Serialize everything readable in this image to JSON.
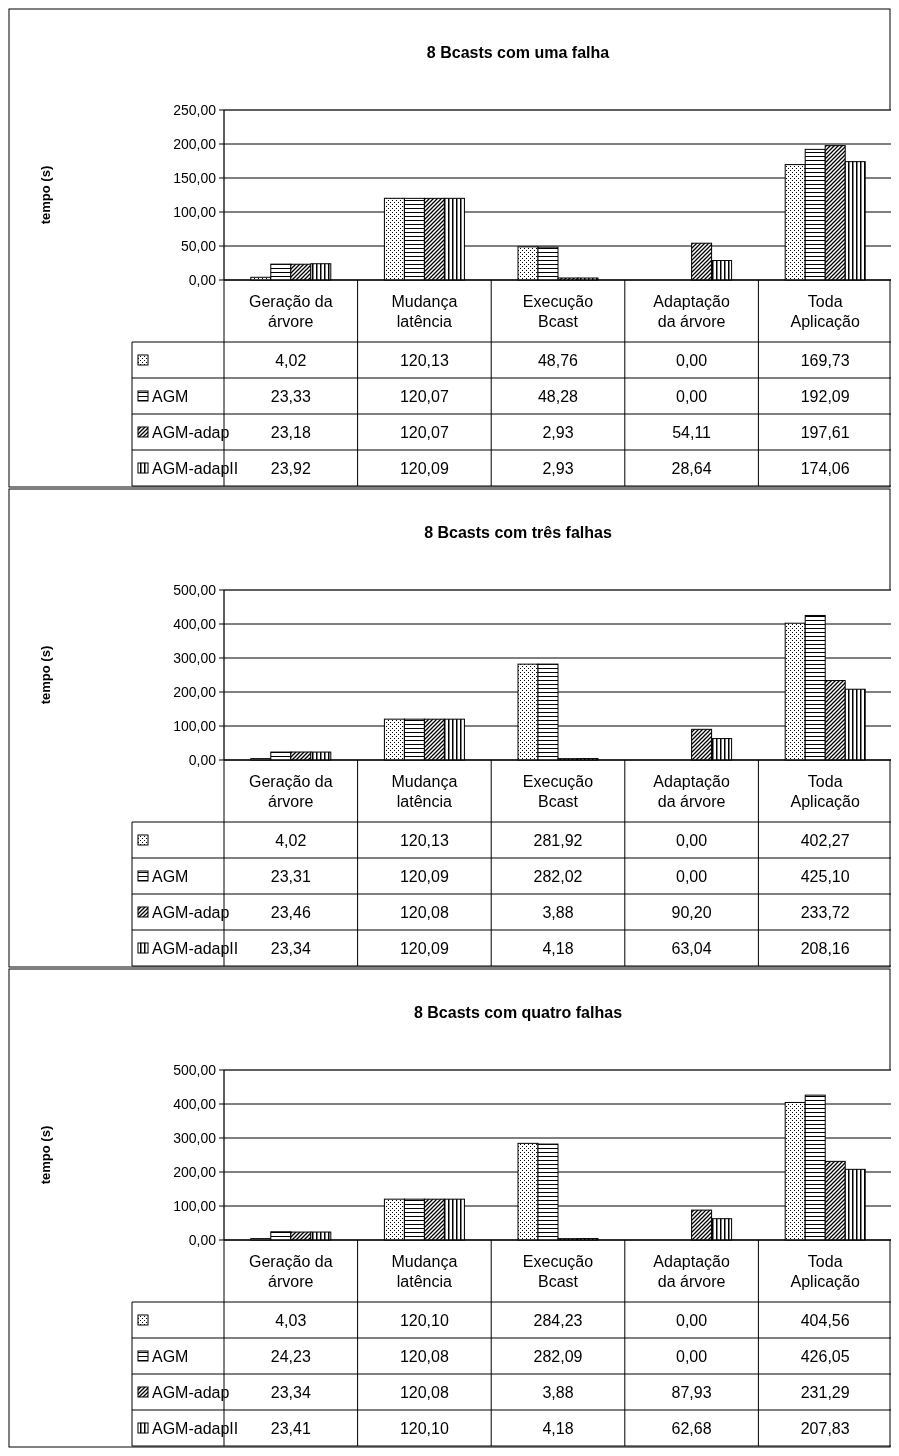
{
  "chart_data": [
    {
      "type": "bar",
      "title": "8 Bcasts com uma falha",
      "ylabel": "tempo (s)",
      "categories": [
        "Geração da árvore",
        "Mudança latência",
        "Execução Bcast",
        "Adaptação da árvore",
        "Toda Aplicação"
      ],
      "series": [
        {
          "color": "#000000",
          "values": [
            4.02,
            120.13,
            48.76,
            0.0,
            169.73
          ],
          "value_labels": [
            "4,02",
            "120,13",
            "48,76",
            "0,00",
            "169,73"
          ]
        },
        {
          "name": "AGM",
          "color": "#000000",
          "values": [
            23.33,
            120.07,
            48.28,
            0.0,
            192.09
          ],
          "value_labels": [
            "23,33",
            "120,07",
            "48,28",
            "0,00",
            "192,09"
          ]
        },
        {
          "name": "AGM-adap",
          "color": "#000000",
          "values": [
            23.18,
            120.07,
            2.93,
            54.11,
            197.61
          ],
          "value_labels": [
            "23,18",
            "120,07",
            "2,93",
            "54,11",
            "197,61"
          ]
        },
        {
          "name": "AGM-adapII",
          "color": "#000000",
          "values": [
            23.92,
            120.09,
            2.93,
            28.64,
            174.06
          ],
          "value_labels": [
            "23,92",
            "120,09",
            "2,93",
            "28,64",
            "174,06"
          ]
        }
      ],
      "ylim": [
        0,
        250
      ],
      "yticks": [
        {
          "value": 0,
          "label": "0,00"
        },
        {
          "value": 50,
          "label": "50,00"
        },
        {
          "value": 100,
          "label": "100,00"
        },
        {
          "value": 150,
          "label": "150,00"
        },
        {
          "value": 200,
          "label": "200,00"
        },
        {
          "value": 250,
          "label": "250,00"
        }
      ],
      "grid": "y",
      "legend": "bottom"
    },
    {
      "type": "bar",
      "title": "8 Bcasts com três falhas",
      "ylabel": "tempo (s)",
      "categories": [
        "Geração da árvore",
        "Mudança latência",
        "Execução Bcast",
        "Adaptação da árvore",
        "Toda Aplicação"
      ],
      "series": [
        {
          "color": "#000000",
          "values": [
            4.02,
            120.13,
            281.92,
            0.0,
            402.27
          ],
          "value_labels": [
            "4,02",
            "120,13",
            "281,92",
            "0,00",
            "402,27"
          ]
        },
        {
          "name": "AGM",
          "color": "#000000",
          "values": [
            23.31,
            120.09,
            282.02,
            0.0,
            425.1
          ],
          "value_labels": [
            "23,31",
            "120,09",
            "282,02",
            "0,00",
            "425,10"
          ]
        },
        {
          "name": "AGM-adap",
          "color": "#000000",
          "values": [
            23.46,
            120.08,
            3.88,
            90.2,
            233.72
          ],
          "value_labels": [
            "23,46",
            "120,08",
            "3,88",
            "90,20",
            "233,72"
          ]
        },
        {
          "name": "AGM-adapII",
          "color": "#000000",
          "values": [
            23.34,
            120.09,
            4.18,
            63.04,
            208.16
          ],
          "value_labels": [
            "23,34",
            "120,09",
            "4,18",
            "63,04",
            "208,16"
          ]
        }
      ],
      "ylim": [
        0,
        500
      ],
      "yticks": [
        {
          "value": 0,
          "label": "0,00"
        },
        {
          "value": 100,
          "label": "100,00"
        },
        {
          "value": 200,
          "label": "200,00"
        },
        {
          "value": 300,
          "label": "300,00"
        },
        {
          "value": 400,
          "label": "400,00"
        },
        {
          "value": 500,
          "label": "500,00"
        }
      ],
      "grid": "y",
      "legend": "bottom"
    },
    {
      "type": "bar",
      "title": "8 Bcasts com quatro falhas",
      "ylabel": "tempo (s)",
      "categories": [
        "Geração da árvore",
        "Mudança latência",
        "Execução Bcast",
        "Adaptação da árvore",
        "Toda Aplicação"
      ],
      "series": [
        {
          "color": "#000000",
          "values": [
            4.03,
            120.1,
            284.23,
            0.0,
            404.56
          ],
          "value_labels": [
            "4,03",
            "120,10",
            "284,23",
            "0,00",
            "404,56"
          ]
        },
        {
          "name": "AGM",
          "color": "#000000",
          "values": [
            24.23,
            120.08,
            282.09,
            0.0,
            426.05
          ],
          "value_labels": [
            "24,23",
            "120,08",
            "282,09",
            "0,00",
            "426,05"
          ]
        },
        {
          "name": "AGM-adap",
          "color": "#000000",
          "values": [
            23.34,
            120.08,
            3.88,
            87.93,
            231.29
          ],
          "value_labels": [
            "23,34",
            "120,08",
            "3,88",
            "87,93",
            "231,29"
          ]
        },
        {
          "name": "AGM-adapII",
          "color": "#000000",
          "values": [
            23.41,
            120.1,
            4.18,
            62.68,
            207.83
          ],
          "value_labels": [
            "23,41",
            "120,10",
            "4,18",
            "62,68",
            "207,83"
          ]
        }
      ],
      "ylim": [
        0,
        500
      ],
      "yticks": [
        {
          "value": 0,
          "label": "0,00"
        },
        {
          "value": 100,
          "label": "100,00"
        },
        {
          "value": 200,
          "label": "200,00"
        },
        {
          "value": 300,
          "label": "300,00"
        },
        {
          "value": 400,
          "label": "400,00"
        },
        {
          "value": 500,
          "label": "500,00"
        }
      ],
      "grid": "y",
      "legend": "bottom"
    }
  ]
}
